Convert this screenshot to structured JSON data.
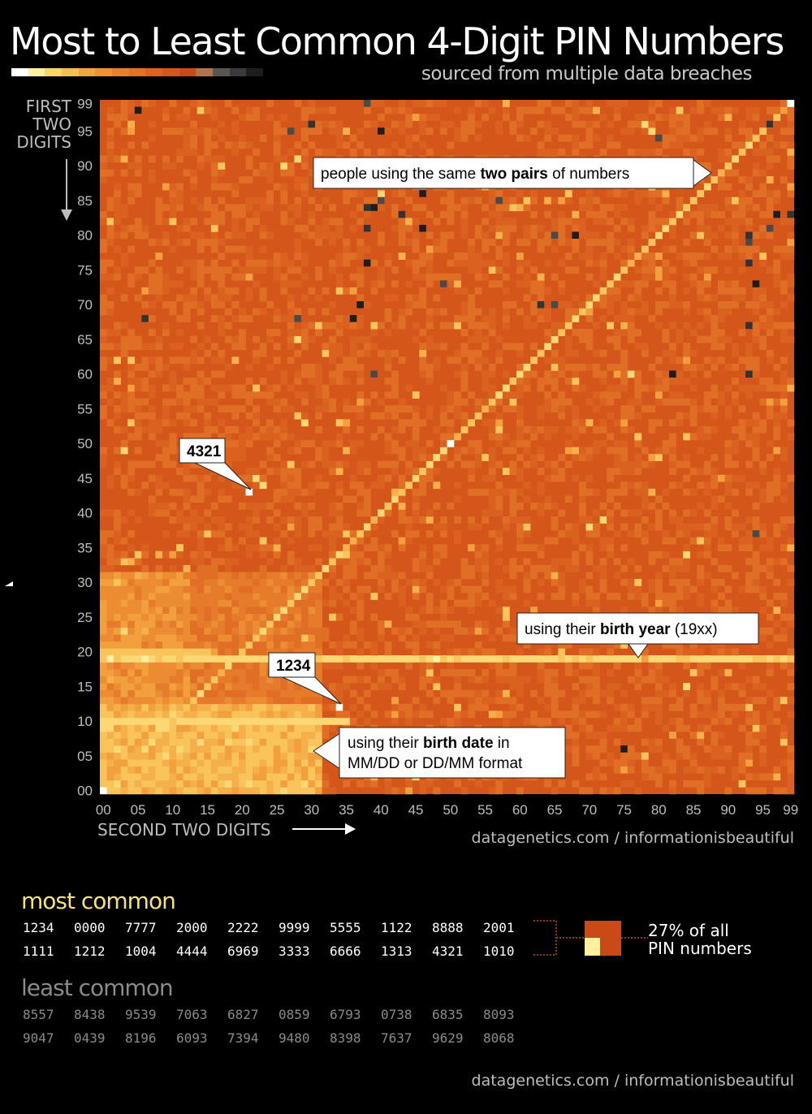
{
  "header": {
    "title": "Most to Least Common 4-Digit PIN Numbers",
    "subtitle": "sourced from multiple data breaches"
  },
  "legend_scale_colors": [
    "#ffffff",
    "#fff0a0",
    "#fbd56a",
    "#f7bd55",
    "#f2a43f",
    "#ee9233",
    "#e8802b",
    "#e27124",
    "#dc631f",
    "#d4561b",
    "#c94a16",
    "#b0744f",
    "#5a5550",
    "#3a3a3a",
    "#1d1d1d"
  ],
  "chart_data": {
    "type": "heatmap",
    "title": "Most to Least Common 4-Digit PIN Numbers",
    "xlabel": "SECOND TWO DIGITS",
    "ylabel": "FIRST TWO DIGITS",
    "x_ticks": [
      "00",
      "05",
      "10",
      "15",
      "20",
      "25",
      "30",
      "35",
      "40",
      "45",
      "50",
      "55",
      "60",
      "65",
      "70",
      "75",
      "80",
      "85",
      "90",
      "95",
      "99"
    ],
    "y_ticks": [
      "00",
      "05",
      "10",
      "15",
      "20",
      "25",
      "30",
      "35",
      "40",
      "45",
      "50",
      "55",
      "60",
      "65",
      "70",
      "75",
      "80",
      "85",
      "90",
      "95",
      "99"
    ],
    "x_range": [
      0,
      99
    ],
    "y_range": [
      0,
      99
    ],
    "grid": false,
    "colors": {
      "base": "#d4561b",
      "high": "#fff0a0",
      "highest": "#ffffff",
      "low": "#1d1d1d"
    },
    "least_common_cells": [
      [
        38,
        99
      ],
      [
        5,
        98
      ],
      [
        30,
        96
      ],
      [
        27,
        95
      ],
      [
        40,
        95
      ],
      [
        96,
        96
      ],
      [
        80,
        94
      ],
      [
        39,
        84
      ],
      [
        38,
        84
      ],
      [
        40,
        85
      ],
      [
        46,
        86
      ],
      [
        43,
        83
      ],
      [
        57,
        85
      ],
      [
        46,
        81
      ],
      [
        38,
        81
      ],
      [
        65,
        80
      ],
      [
        68,
        80
      ],
      [
        93,
        80
      ],
      [
        93,
        79
      ],
      [
        97,
        83
      ],
      [
        99,
        83
      ],
      [
        96,
        81
      ],
      [
        38,
        76
      ],
      [
        93,
        76
      ],
      [
        49,
        73
      ],
      [
        94,
        73
      ],
      [
        63,
        70
      ],
      [
        65,
        70
      ],
      [
        37,
        70
      ],
      [
        6,
        68
      ],
      [
        28,
        68
      ],
      [
        36,
        68
      ],
      [
        93,
        67
      ],
      [
        39,
        60
      ],
      [
        82,
        60
      ],
      [
        93,
        60
      ],
      [
        94,
        37
      ],
      [
        75,
        6
      ]
    ],
    "annotations": [
      {
        "text_plain": "people using the same ",
        "text_bold": "two pairs",
        "text_after": " of numbers"
      },
      {
        "text_bold": "4321"
      },
      {
        "text_plain": "using their ",
        "text_bold": "birth year",
        "text_after": " (19xx)"
      },
      {
        "text_bold": "1234"
      },
      {
        "text_plain": "using their ",
        "text_bold": "birth date",
        "text_after": " in",
        "line2": "MM/DD or DD/MM format"
      }
    ],
    "ylabel_lines": [
      "FIRST",
      "TWO",
      "DIGITS"
    ]
  },
  "credit": "datagenetics.com / informationisbeautiful",
  "most_common": {
    "title": "most common",
    "row1": [
      "1234",
      "0000",
      "7777",
      "2000",
      "2222",
      "9999",
      "5555",
      "1122",
      "8888",
      "2001"
    ],
    "row2": [
      "1111",
      "1212",
      "1004",
      "4444",
      "6969",
      "3333",
      "6666",
      "1313",
      "4321",
      "1010"
    ],
    "share": "27% of all",
    "share2": "PIN numbers"
  },
  "least_common": {
    "title": "least common",
    "row1": [
      "8557",
      "8438",
      "9539",
      "7063",
      "6827",
      "0859",
      "6793",
      "0738",
      "6835",
      "8093"
    ],
    "row2": [
      "9047",
      "0439",
      "8196",
      "6093",
      "7394",
      "9480",
      "8398",
      "7637",
      "9629",
      "8068"
    ]
  }
}
